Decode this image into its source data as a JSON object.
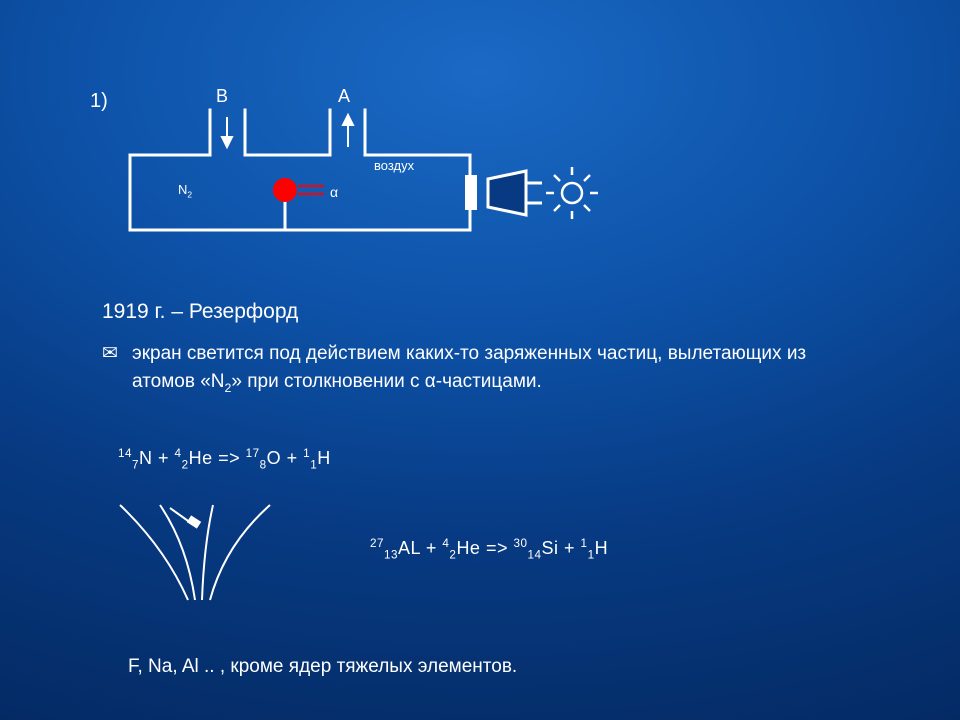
{
  "slide_number": "1)",
  "diagram": {
    "label_B": "B",
    "label_A": "A",
    "label_N2_html": "N<sub>2</sub>",
    "label_air": "воздух",
    "label_alpha": "α",
    "stroke": "#ffffff",
    "stroke_width": 3,
    "source_fill": "#ff0000",
    "source_radius": 12
  },
  "heading": "1919 г. – Резерфорд",
  "bullet_html": "экран светится под действием каких-то заряженных частиц, вылетающих из атомов «N<sub>2</sub>» при столкновении с α-частицами.",
  "equation1_html": "<sup>14</sup><sub>7</sub>N + <sup>4</sup><sub>2</sub>He => <sup>17</sup><sub>8</sub>O + <sup>1</sup><sub>1</sub>H",
  "equation2_html": "<sup>27</sup><sub>13</sub>AL + <sup>4</sup><sub>2</sub>He => <sup>30</sup><sub>14</sub>Si + <sup>1</sup><sub>1</sub>H",
  "footer": "F, Na, Al .. , кроме ядер тяжелых элементов.",
  "colors": {
    "text": "#ffffff",
    "accent_yellow": "#ffcc33"
  },
  "fonts": {
    "body_size": 19,
    "small_size": 14,
    "heading_size": 21
  }
}
